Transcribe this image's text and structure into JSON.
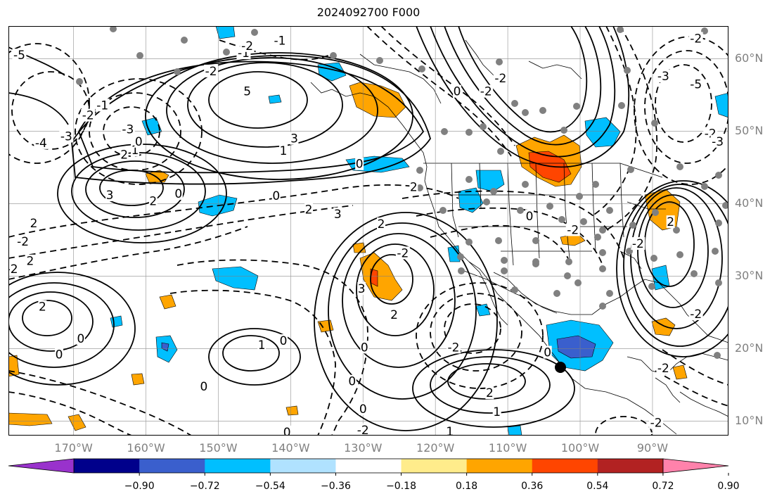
{
  "title": "2024092700 F000",
  "lat_labels": [
    {
      "text": "60°N",
      "lat": 60
    },
    {
      "text": "50°N",
      "lat": 50
    },
    {
      "text": "40°N",
      "lat": 40
    },
    {
      "text": "30°N",
      "lat": 30
    },
    {
      "text": "20°N",
      "lat": 20
    },
    {
      "text": "10°N",
      "lat": 10
    }
  ],
  "lon_labels": [
    {
      "text": "170°W",
      "lon": -170
    },
    {
      "text": "160°W",
      "lon": -160
    },
    {
      "text": "150°W",
      "lon": -150
    },
    {
      "text": "140°W",
      "lon": -140
    },
    {
      "text": "130°W",
      "lon": -130
    },
    {
      "text": "120°W",
      "lon": -120
    },
    {
      "text": "110°W",
      "lon": -110
    },
    {
      "text": "100°W",
      "lon": -100
    },
    {
      "text": "90°W",
      "lon": -90
    }
  ],
  "extent": {
    "lon_min": -179,
    "lon_max": -79.5,
    "lat_min": 8,
    "lat_max": 64.5
  },
  "colorbar": {
    "colors": [
      "#9932cc",
      "#00008b",
      "#3a5fcd",
      "#00bfff",
      "#b0e2ff",
      "#ffffff",
      "#ffec8b",
      "#ffa500",
      "#ff4500",
      "#b22222",
      "#ff82ab"
    ],
    "extend_low": "#9932cc",
    "extend_high": "#ff82ab",
    "tick_labels": [
      "−0.90",
      "−0.72",
      "−0.54",
      "−0.36",
      "−0.18",
      "0.18",
      "0.36",
      "0.54",
      "0.72",
      "0.90"
    ]
  },
  "contour_labels": [
    {
      "text": "5",
      "lon": -146,
      "lat": 55.5
    },
    {
      "text": "3",
      "lon": -139.5,
      "lat": 49
    },
    {
      "text": "1",
      "lon": -141,
      "lat": 47.3
    },
    {
      "text": "2",
      "lon": -163,
      "lat": 46.8
    },
    {
      "text": "1",
      "lon": -161.5,
      "lat": 47.4
    },
    {
      "text": "3",
      "lon": -165,
      "lat": 41.2
    },
    {
      "text": "2",
      "lon": -159,
      "lat": 40.4
    },
    {
      "text": "0",
      "lon": -155.5,
      "lat": 41.4
    },
    {
      "text": "0",
      "lon": -161,
      "lat": 48.6
    },
    {
      "text": "2",
      "lon": -175.5,
      "lat": 37.3
    },
    {
      "text": "2",
      "lon": -176,
      "lat": 32.1
    },
    {
      "text": "2",
      "lon": -174.3,
      "lat": 25.8
    },
    {
      "text": "0",
      "lon": -169,
      "lat": 21.4
    },
    {
      "text": "0",
      "lon": -172,
      "lat": 19.2
    },
    {
      "text": "1",
      "lon": -144,
      "lat": 20.5
    },
    {
      "text": "0",
      "lon": -141,
      "lat": 21.1
    },
    {
      "text": "0",
      "lon": -152,
      "lat": 14.8
    },
    {
      "text": "3",
      "lon": -130.2,
      "lat": 28.3
    },
    {
      "text": "2",
      "lon": -125.7,
      "lat": 24.7
    },
    {
      "text": "0",
      "lon": -129.8,
      "lat": 20.2
    },
    {
      "text": "0",
      "lon": -131.5,
      "lat": 15.5
    },
    {
      "text": "0",
      "lon": -130,
      "lat": 11.7
    },
    {
      "text": "2",
      "lon": -112.5,
      "lat": 13.9
    },
    {
      "text": "1",
      "lon": -111.5,
      "lat": 11.3
    },
    {
      "text": "1",
      "lon": -118,
      "lat": 8.6
    },
    {
      "text": "-2",
      "lon": -117.5,
      "lat": 20.2
    },
    {
      "text": "0",
      "lon": -104.5,
      "lat": 19.5
    },
    {
      "text": "2",
      "lon": -127.5,
      "lat": 37.2
    },
    {
      "text": "3",
      "lon": -133.5,
      "lat": 38.6
    },
    {
      "text": "2",
      "lon": -137.5,
      "lat": 39.2
    },
    {
      "text": "2",
      "lon": -123,
      "lat": 42.3
    },
    {
      "text": "0",
      "lon": -130.5,
      "lat": 45.5
    },
    {
      "text": "0",
      "lon": -142,
      "lat": 41.1
    },
    {
      "text": "-2",
      "lon": -177,
      "lat": 34.8
    },
    {
      "text": "-2",
      "lon": -178.5,
      "lat": 31.0
    },
    {
      "text": "-3",
      "lon": -171,
      "lat": 49.3
    },
    {
      "text": "-4",
      "lon": -174.5,
      "lat": 48.4
    },
    {
      "text": "-5",
      "lon": -177.5,
      "lat": 60.5
    },
    {
      "text": "-1",
      "lon": -166,
      "lat": 53.6
    },
    {
      "text": "-2",
      "lon": -168,
      "lat": 52.2
    },
    {
      "text": "-3",
      "lon": -162.5,
      "lat": 50.3
    },
    {
      "text": "-2",
      "lon": -151,
      "lat": 58.3
    },
    {
      "text": "-1",
      "lon": -146.5,
      "lat": 60.8
    },
    {
      "text": "-2",
      "lon": -146,
      "lat": 61.8
    },
    {
      "text": "-1",
      "lon": -141.5,
      "lat": 62.5
    },
    {
      "text": "-2",
      "lon": -113,
      "lat": 55.5
    },
    {
      "text": "-2",
      "lon": -111,
      "lat": 57.3
    },
    {
      "text": "0",
      "lon": -117,
      "lat": 55.5
    },
    {
      "text": "-2",
      "lon": -124.5,
      "lat": 33.2
    },
    {
      "text": "0",
      "lon": -107,
      "lat": 38.3
    },
    {
      "text": "-2",
      "lon": -101,
      "lat": 36.4
    },
    {
      "text": "-2",
      "lon": -84,
      "lat": 62.8
    },
    {
      "text": "-3",
      "lon": -88.5,
      "lat": 57.6
    },
    {
      "text": "-5",
      "lon": -84,
      "lat": 56.5
    },
    {
      "text": "-2",
      "lon": -82,
      "lat": 49.7
    },
    {
      "text": "-3",
      "lon": -81,
      "lat": 48.6
    },
    {
      "text": "-2",
      "lon": -88.5,
      "lat": 17.3
    },
    {
      "text": "-2",
      "lon": -130,
      "lat": 8.8
    },
    {
      "text": "-2",
      "lon": -89.5,
      "lat": 9.8
    },
    {
      "text": "2",
      "lon": -87.5,
      "lat": 37.5
    },
    {
      "text": "-2",
      "lon": -92,
      "lat": 34.5
    },
    {
      "text": "-2",
      "lon": -84,
      "lat": 24.8
    },
    {
      "text": "0",
      "lon": -140.5,
      "lat": 8.5
    }
  ]
}
